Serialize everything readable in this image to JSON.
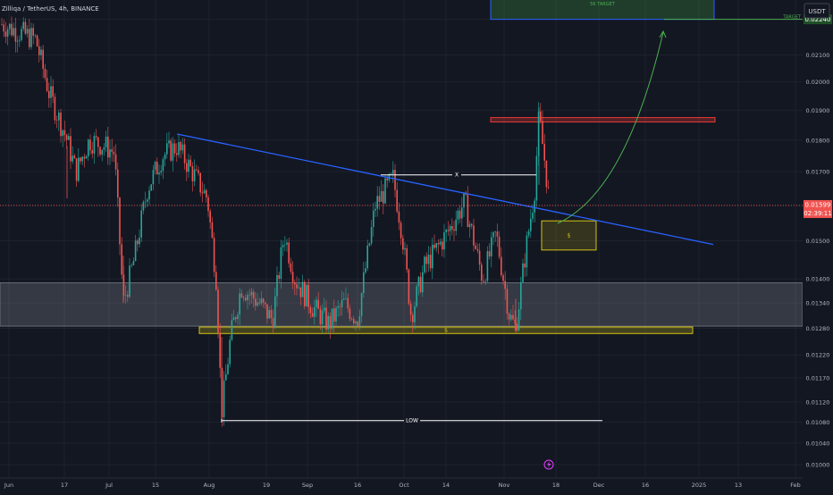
{
  "header": {
    "symbol_title": "Zilliqa / TetherUS, 4h, BINANCE",
    "currency_button": "USDT"
  },
  "price_axis": {
    "ticks": [
      "0.02240",
      "0.02100",
      "0.02000",
      "0.01900",
      "0.01800",
      "0.01700",
      "0.01599",
      "0.01500",
      "0.01400",
      "0.01340",
      "0.01280",
      "0.01220",
      "0.01170",
      "0.01120",
      "0.01080",
      "0.01040",
      "0.01000"
    ],
    "current_price": "0.01599",
    "countdown": "02:39:11",
    "target_price": "0.02240"
  },
  "time_axis": {
    "labels": [
      "Jun",
      "17",
      "Jul",
      "15",
      "Aug",
      "19",
      "Sep",
      "16",
      "Oct",
      "14",
      "Nov",
      "18",
      "Dec",
      "16",
      "2025",
      "13",
      "Feb"
    ]
  },
  "annotations": {
    "target_box_label": "5K TARGET",
    "target_line_label": "TARGET",
    "neckline_label": "X",
    "buy_box_label": "$",
    "support_label": "$",
    "low_label": "LOW"
  },
  "colors": {
    "background": "#131722",
    "grid": "#1e222d",
    "up": "#26a69a",
    "down": "#ef5350",
    "trendline": "#2962ff",
    "target_green": "#43a047",
    "support_yellow": "#d4c216",
    "resistance_red": "#e53935"
  },
  "chart_data": {
    "type": "candlestick",
    "x": [
      "Jun",
      "Jul",
      "Aug",
      "Sep",
      "Oct",
      "Nov",
      "Dec",
      "2025",
      "Feb"
    ],
    "ylim": [
      0.01,
      0.0229
    ],
    "scale": "log",
    "grid": true,
    "path_points": [
      [
        2,
        0.0222
      ],
      [
        40,
        0.0216
      ],
      [
        55,
        0.0196
      ],
      [
        75,
        0.018
      ],
      [
        85,
        0.017
      ],
      [
        100,
        0.018
      ],
      [
        118,
        0.0178
      ],
      [
        128,
        0.0176
      ],
      [
        138,
        0.0134
      ],
      [
        150,
        0.0145
      ],
      [
        165,
        0.0165
      ],
      [
        182,
        0.0175
      ],
      [
        198,
        0.0178
      ],
      [
        215,
        0.017
      ],
      [
        232,
        0.0162
      ],
      [
        242,
        0.014
      ],
      [
        248,
        0.011
      ],
      [
        258,
        0.0126
      ],
      [
        270,
        0.0138
      ],
      [
        290,
        0.0134
      ],
      [
        305,
        0.013
      ],
      [
        318,
        0.0152
      ],
      [
        330,
        0.014
      ],
      [
        350,
        0.0133
      ],
      [
        368,
        0.0129
      ],
      [
        385,
        0.0134
      ],
      [
        400,
        0.013
      ],
      [
        420,
        0.016
      ],
      [
        440,
        0.0168
      ],
      [
        450,
        0.0152
      ],
      [
        460,
        0.0131
      ],
      [
        475,
        0.0143
      ],
      [
        500,
        0.0152
      ],
      [
        520,
        0.0161
      ],
      [
        540,
        0.014
      ],
      [
        555,
        0.0152
      ],
      [
        570,
        0.0131
      ],
      [
        577,
        0.0128
      ],
      [
        588,
        0.0147
      ],
      [
        598,
        0.0164
      ],
      [
        603,
        0.0188
      ],
      [
        610,
        0.0172
      ],
      [
        615,
        0.016
      ]
    ],
    "levels": {
      "resistance_zone": [
        0.0186,
        0.01875
      ],
      "support_zone": [
        0.01285,
        0.0139
      ],
      "key_support": [
        0.01268,
        0.01283
      ],
      "buy_zone": [
        0.01475,
        0.01555
      ],
      "target_zone": [
        0.0224,
        0.0229
      ],
      "low": 0.01083,
      "neckline": 0.0169,
      "target": 0.0224
    },
    "trendline": [
      [
        198,
        0.0182
      ],
      [
        798,
        0.0149
      ]
    ]
  }
}
